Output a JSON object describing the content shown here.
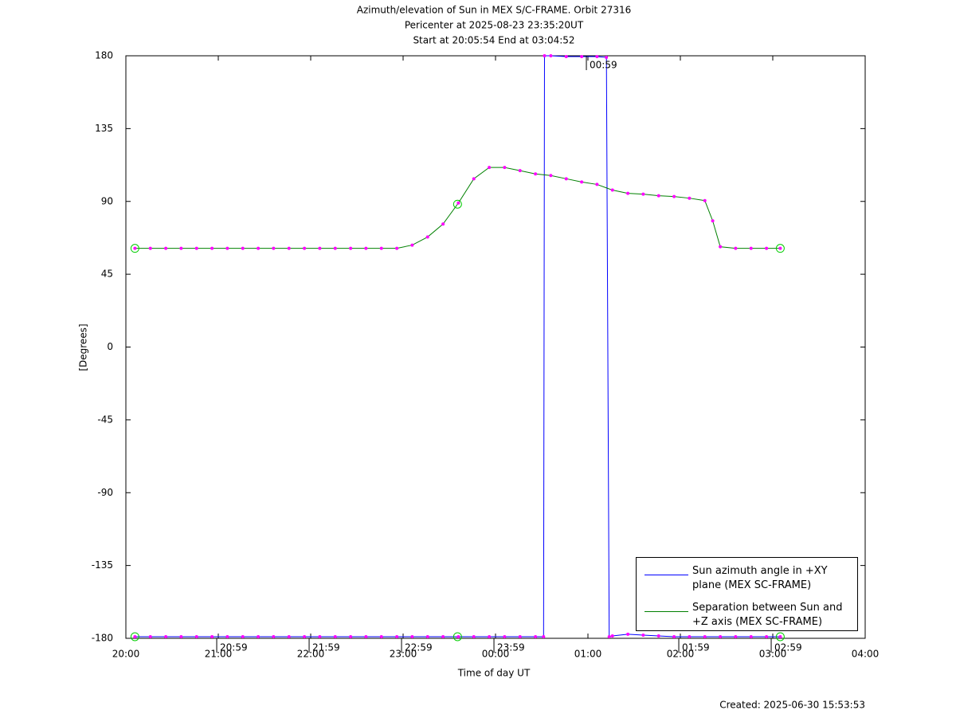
{
  "chart_data": {
    "type": "line",
    "title": "Azimuth/elevation of Sun in MEX S/C-FRAME.  Orbit 27316",
    "subtitle": "Pericenter at 2025-08-23 23:35:20UT",
    "subtitle2": "Start at 20:05:54 End at 03:04:52",
    "xlabel": "Time of day UT",
    "ylabel": "[Degrees]",
    "footer": "Created: 2025-06-30 15:53:53",
    "xlim": [
      20,
      28
    ],
    "xticks": [
      {
        "value": 20,
        "label": "20:00"
      },
      {
        "value": 21,
        "label": "21:00"
      },
      {
        "value": 22,
        "label": "22:00"
      },
      {
        "value": 23,
        "label": "23:00"
      },
      {
        "value": 24,
        "label": "00:00"
      },
      {
        "value": 25,
        "label": "01:00"
      },
      {
        "value": 26,
        "label": "02:00"
      },
      {
        "value": 27,
        "label": "03:00"
      },
      {
        "value": 28,
        "label": "04:00"
      }
    ],
    "ylim": [
      -180,
      180
    ],
    "yticks": [
      180,
      135,
      90,
      45,
      0,
      -45,
      -90,
      -135,
      -180
    ],
    "legend": "lower right",
    "marker_color": "#ff00ff",
    "event_color": "#00cc00",
    "events_x": [
      20.098,
      23.589,
      27.081
    ],
    "hour_marks": [
      {
        "x": 20.983,
        "y": -180,
        "label": "20:59"
      },
      {
        "x": 21.983,
        "y": -180,
        "label": "21:59"
      },
      {
        "x": 22.983,
        "y": -180,
        "label": "22:59"
      },
      {
        "x": 23.983,
        "y": -180,
        "label": "23:59"
      },
      {
        "x": 24.983,
        "y": 180,
        "label": "00:59"
      },
      {
        "x": 25.983,
        "y": -180,
        "label": "01:59"
      },
      {
        "x": 26.983,
        "y": -180,
        "label": "02:59"
      }
    ],
    "series": [
      {
        "name": "Sun azimuth angle in +XY plane (MEX SC-FRAME)",
        "color": "#0000ff",
        "x": [
          20.098,
          20.265,
          20.432,
          20.598,
          20.765,
          20.932,
          21.098,
          21.265,
          21.432,
          21.598,
          21.765,
          21.932,
          22.098,
          22.265,
          22.432,
          22.598,
          22.765,
          22.932,
          23.098,
          23.265,
          23.432,
          23.598,
          23.765,
          23.932,
          24.098,
          24.265,
          24.432,
          24.52,
          24.53,
          24.598,
          24.765,
          24.932,
          25.098,
          25.2,
          25.23,
          25.265,
          25.432,
          25.598,
          25.765,
          25.932,
          26.098,
          26.265,
          26.432,
          26.598,
          26.765,
          26.932,
          27.081
        ],
        "values": [
          -179,
          -179,
          -179,
          -179,
          -179,
          -179,
          -179,
          -179,
          -179,
          -179,
          -179,
          -179,
          -179,
          -179,
          -179,
          -179,
          -179,
          -179,
          -179,
          -179,
          -179,
          -179,
          -179,
          -179,
          -179,
          -179,
          -179,
          -179,
          180,
          180,
          179.5,
          179.5,
          179.5,
          179,
          -179,
          -178.5,
          -177.5,
          -178,
          -178.5,
          -179,
          -179,
          -179,
          -179,
          -179,
          -179,
          -179,
          -179
        ]
      },
      {
        "name": "Separation between Sun and +Z axis (MEX SC-FRAME)",
        "color": "#008000",
        "x": [
          20.098,
          20.265,
          20.432,
          20.598,
          20.765,
          20.932,
          21.098,
          21.265,
          21.432,
          21.598,
          21.765,
          21.932,
          22.098,
          22.265,
          22.432,
          22.598,
          22.765,
          22.932,
          23.098,
          23.265,
          23.432,
          23.598,
          23.765,
          23.932,
          24.098,
          24.265,
          24.432,
          24.598,
          24.765,
          24.932,
          25.098,
          25.265,
          25.432,
          25.598,
          25.765,
          25.932,
          26.098,
          26.265,
          26.35,
          26.432,
          26.598,
          26.765,
          26.932,
          27.081
        ],
        "values": [
          61,
          61,
          61,
          61,
          61,
          61,
          61,
          61,
          61,
          61,
          61,
          61,
          61,
          61,
          61,
          61,
          61,
          61,
          63,
          68,
          76,
          89,
          104,
          111,
          111,
          109,
          107,
          106,
          104,
          102,
          100.5,
          97,
          95,
          94.5,
          93.5,
          93,
          92,
          90.5,
          78,
          62,
          61,
          61,
          61,
          61
        ]
      }
    ]
  }
}
